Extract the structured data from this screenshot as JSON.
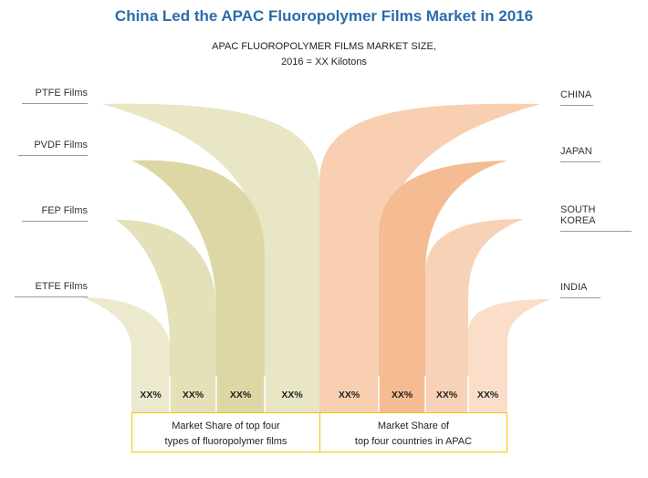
{
  "title": "China Led the APAC Fluoropolymer Films Market in 2016",
  "subtitle": {
    "line1": "APAC FLUOROPOLYMER  FILMS MARKET SIZE,",
    "line2": "2016 = XX Kilotons"
  },
  "film_types": [
    {
      "label": "PTFE Films",
      "value": "XX%",
      "color": "#e9e6c6"
    },
    {
      "label": "PVDF Films",
      "value": "XX%",
      "color": "#dcd7a4"
    },
    {
      "label": "FEP Films",
      "value": "XX%",
      "color": "#e4e0b7"
    },
    {
      "label": "ETFE Films",
      "value": "XX%",
      "color": "#ece9cf"
    }
  ],
  "countries": [
    {
      "label": "CHINA",
      "value": "XX%",
      "color": "#f8cfb0"
    },
    {
      "label": "JAPAN",
      "value": "XX%",
      "color": "#f5bb92"
    },
    {
      "label": "SOUTH KOREA",
      "value": "XX%",
      "color": "#f8d2b6"
    },
    {
      "label": "INDIA",
      "value": "XX%",
      "color": "#fadec9"
    }
  ],
  "captions": {
    "left_line1": "Market Share of top four",
    "left_line2": "types of fluoropolymer films",
    "right_line1": "Market Share of",
    "right_line2": "top four countries in APAC"
  },
  "accent_color": "#f2c600",
  "title_color": "#2a6cad"
}
